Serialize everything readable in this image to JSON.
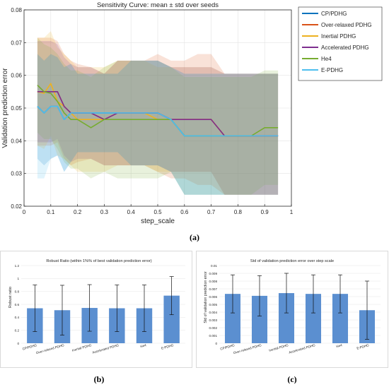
{
  "figure": {
    "captions": [
      "(a)",
      "(b)",
      "(c)"
    ]
  },
  "chart_data": [
    {
      "type": "area",
      "title": "Sensitivity Curve: mean ± std over seeds",
      "xlabel": "step_scale",
      "ylabel": "Validation prediction error",
      "xlim": [
        0,
        1
      ],
      "ylim": [
        0.02,
        0.08
      ],
      "xticks": [
        0,
        0.1,
        0.2,
        0.3,
        0.4,
        0.5,
        0.6,
        0.7,
        0.8,
        0.9,
        1
      ],
      "yticks": [
        0.02,
        0.03,
        0.04,
        0.05,
        0.06,
        0.07,
        0.08
      ],
      "xtick_labels": [
        "0",
        "0.1",
        "0.2",
        "0.3",
        "0.4",
        "0.5",
        "0.6",
        "0.7",
        "0.8",
        "0.9",
        "1"
      ],
      "ytick_labels": [
        "0.02",
        "0.03",
        "0.04",
        "0.05",
        "0.06",
        "0.07",
        "0.08"
      ],
      "grid": true,
      "legend_position": "outside-right",
      "x": [
        0.05,
        0.075,
        0.1,
        0.125,
        0.15,
        0.175,
        0.2,
        0.25,
        0.3,
        0.35,
        0.4,
        0.45,
        0.5,
        0.55,
        0.6,
        0.65,
        0.7,
        0.75,
        0.8,
        0.85,
        0.9,
        0.95
      ],
      "series": [
        {
          "name": "CP/PDHG",
          "color": "#0072BD",
          "mean": [
            0.0505,
            0.0485,
            0.0505,
            0.0505,
            0.0465,
            0.0485,
            0.0485,
            0.0485,
            0.0485,
            0.0485,
            0.0485,
            0.0485,
            0.0485,
            0.0465,
            0.0415,
            0.0415,
            0.0415,
            0.0415,
            0.0415,
            0.0415,
            0.0415,
            0.0415
          ],
          "upper": [
            0.0665,
            0.0645,
            0.0665,
            0.0655,
            0.0625,
            0.0635,
            0.0605,
            0.0605,
            0.0605,
            0.0605,
            0.0645,
            0.0645,
            0.0645,
            0.0625,
            0.0605,
            0.0605,
            0.0605,
            0.0605,
            0.0605,
            0.0605,
            0.0605,
            0.0605
          ],
          "lower": [
            0.0345,
            0.0325,
            0.0345,
            0.0355,
            0.0305,
            0.0335,
            0.0365,
            0.0365,
            0.0365,
            0.0365,
            0.0325,
            0.0325,
            0.0325,
            0.0305,
            0.0235,
            0.0235,
            0.0235,
            0.0235,
            0.0235,
            0.0235,
            0.0235,
            0.0235
          ]
        },
        {
          "name": "Over-relaxed PDHG",
          "color": "#D95319",
          "mean": [
            0.055,
            0.055,
            0.055,
            0.055,
            0.0505,
            0.0485,
            0.0485,
            0.0485,
            0.0465,
            0.0485,
            0.0485,
            0.0485,
            0.0485,
            0.0465,
            0.0465,
            0.0465,
            0.0465,
            0.0415,
            0.0415,
            0.0415,
            0.0415,
            0.0415
          ],
          "upper": [
            0.0715,
            0.0715,
            0.0715,
            0.0705,
            0.0665,
            0.0645,
            0.0635,
            0.0625,
            0.0605,
            0.0645,
            0.0645,
            0.0645,
            0.0665,
            0.0645,
            0.0645,
            0.0665,
            0.0665,
            0.0605,
            0.0605,
            0.0605,
            0.0605,
            0.0605
          ],
          "lower": [
            0.0385,
            0.0385,
            0.0385,
            0.0395,
            0.0345,
            0.0325,
            0.0335,
            0.0345,
            0.0325,
            0.0325,
            0.0325,
            0.0325,
            0.0305,
            0.0285,
            0.0285,
            0.0265,
            0.0265,
            0.0235,
            0.0235,
            0.0235,
            0.0235,
            0.0235
          ]
        },
        {
          "name": "Inertial PDHG",
          "color": "#EDB120",
          "mean": [
            0.055,
            0.0545,
            0.0575,
            0.052,
            0.0505,
            0.0485,
            0.0465,
            0.0465,
            0.0465,
            0.0485,
            0.0485,
            0.0485,
            0.0465,
            0.0465,
            0.0465,
            0.0465,
            0.0465,
            0.0415,
            0.0415,
            0.0415,
            0.0415,
            0.0415
          ],
          "upper": [
            0.0715,
            0.0715,
            0.0735,
            0.0685,
            0.0665,
            0.0645,
            0.0625,
            0.0625,
            0.0625,
            0.0645,
            0.0645,
            0.0645,
            0.0625,
            0.0625,
            0.0625,
            0.0625,
            0.0625,
            0.0605,
            0.0605,
            0.0605,
            0.0605,
            0.0605
          ],
          "lower": [
            0.0385,
            0.0375,
            0.0415,
            0.0355,
            0.0345,
            0.0325,
            0.0305,
            0.0305,
            0.0305,
            0.0325,
            0.0325,
            0.0325,
            0.0305,
            0.0305,
            0.0305,
            0.0305,
            0.0305,
            0.0235,
            0.0235,
            0.0235,
            0.0235,
            0.0235
          ]
        },
        {
          "name": "Accelerated PDHG",
          "color": "#7E2F8E",
          "mean": [
            0.055,
            0.055,
            0.055,
            0.055,
            0.0505,
            0.0485,
            0.0485,
            0.0485,
            0.0465,
            0.0485,
            0.0485,
            0.0485,
            0.0485,
            0.0465,
            0.0465,
            0.0465,
            0.0465,
            0.0415,
            0.0415,
            0.0415,
            0.0415,
            0.0415
          ],
          "upper": [
            0.0705,
            0.0705,
            0.0705,
            0.0695,
            0.0655,
            0.0635,
            0.0625,
            0.0625,
            0.0605,
            0.0645,
            0.0645,
            0.0645,
            0.0645,
            0.0625,
            0.0625,
            0.0625,
            0.0625,
            0.0605,
            0.0605,
            0.0605,
            0.0605,
            0.0605
          ],
          "lower": [
            0.0395,
            0.0395,
            0.0395,
            0.0405,
            0.0355,
            0.0335,
            0.0345,
            0.0345,
            0.0325,
            0.0325,
            0.0325,
            0.0325,
            0.0325,
            0.0305,
            0.0305,
            0.0305,
            0.0305,
            0.0235,
            0.0235,
            0.0235,
            0.0235,
            0.0235
          ]
        },
        {
          "name": "He4",
          "color": "#77AC30",
          "mean": [
            0.057,
            0.055,
            0.0545,
            0.052,
            0.0485,
            0.0465,
            0.0465,
            0.044,
            0.0465,
            0.0465,
            0.0465,
            0.0465,
            0.0465,
            0.0465,
            0.0415,
            0.0415,
            0.0415,
            0.0415,
            0.0415,
            0.0415,
            0.044,
            0.044
          ],
          "upper": [
            0.0715,
            0.0695,
            0.0685,
            0.0665,
            0.0635,
            0.0615,
            0.0615,
            0.0595,
            0.0625,
            0.0645,
            0.0645,
            0.0645,
            0.0645,
            0.0625,
            0.0595,
            0.0595,
            0.0595,
            0.0595,
            0.0595,
            0.0595,
            0.0615,
            0.0615
          ],
          "lower": [
            0.0425,
            0.0405,
            0.0405,
            0.0375,
            0.0335,
            0.0315,
            0.0315,
            0.0285,
            0.0305,
            0.0285,
            0.0285,
            0.0285,
            0.0285,
            0.0305,
            0.0235,
            0.0235,
            0.0235,
            0.0235,
            0.0235,
            0.0235,
            0.0265,
            0.0265
          ]
        },
        {
          "name": "E-PDHG",
          "color": "#4DBEEE",
          "mean": [
            0.0505,
            0.0485,
            0.0505,
            0.0505,
            0.0465,
            0.0485,
            0.0485,
            0.0485,
            0.0485,
            0.0485,
            0.0485,
            0.0485,
            0.0485,
            0.0465,
            0.0415,
            0.0415,
            0.0415,
            0.0415,
            0.0415,
            0.0415,
            0.0415,
            0.0415
          ],
          "upper": [
            0.0665,
            0.0645,
            0.0665,
            0.0655,
            0.0625,
            0.0635,
            0.0605,
            0.0605,
            0.0605,
            0.0605,
            0.0645,
            0.0645,
            0.0645,
            0.0625,
            0.0605,
            0.0605,
            0.0605,
            0.0605,
            0.0605,
            0.0605,
            0.0605,
            0.0605
          ],
          "lower": [
            0.0285,
            0.0285,
            0.0345,
            0.0355,
            0.0305,
            0.0335,
            0.0365,
            0.0365,
            0.0365,
            0.0365,
            0.0325,
            0.0325,
            0.0325,
            0.0305,
            0.0235,
            0.0235,
            0.0235,
            0.0235,
            0.0235,
            0.0235,
            0.0235,
            0.0235
          ]
        }
      ]
    },
    {
      "type": "bar",
      "title": "Robust Ratio (within 1%% of best validation prediction error)",
      "xlabel": "",
      "ylabel": "Robust ratio",
      "ylim": [
        0,
        1.2
      ],
      "yticks": [
        0,
        0.2,
        0.4,
        0.6,
        0.8,
        1,
        1.2
      ],
      "ytick_labels": [
        "0",
        "0.2",
        "0.4",
        "0.6",
        "0.8",
        "1",
        "1.2"
      ],
      "grid": true,
      "bar_color": "#5B8FD0",
      "categories": [
        "CP/PDHG",
        "Over-relaxed PDHG",
        "Inertial PDHG",
        "Accelerated PDHG",
        "He4",
        "E-PDHG"
      ],
      "values": [
        0.54,
        0.51,
        0.545,
        0.54,
        0.54,
        0.735
      ],
      "errors": [
        0.36,
        0.385,
        0.36,
        0.36,
        0.36,
        0.295
      ]
    },
    {
      "type": "bar",
      "title": "Std of validation prediction error over step scale",
      "xlabel": "",
      "ylabel": "Std of validation prediction error",
      "ylim": [
        0,
        0.01
      ],
      "yticks": [
        0,
        0.001,
        0.002,
        0.003,
        0.004,
        0.005,
        0.006,
        0.007,
        0.008,
        0.009,
        0.01
      ],
      "ytick_labels": [
        "0",
        "0.001",
        "0.002",
        "0.003",
        "0.004",
        "0.005",
        "0.006",
        "0.007",
        "0.008",
        "0.009",
        "0.01"
      ],
      "grid": true,
      "bar_color": "#5B8FD0",
      "categories": [
        "CP/PDHG",
        "Over-relaxed PDHG",
        "Inertial PDHG",
        "Accelerated PDHG",
        "He4",
        "E-PDHG"
      ],
      "values": [
        0.00635,
        0.0061,
        0.00645,
        0.00635,
        0.00635,
        0.00425
      ],
      "errors": [
        0.00245,
        0.0026,
        0.00255,
        0.00245,
        0.00245,
        0.00375
      ]
    }
  ]
}
